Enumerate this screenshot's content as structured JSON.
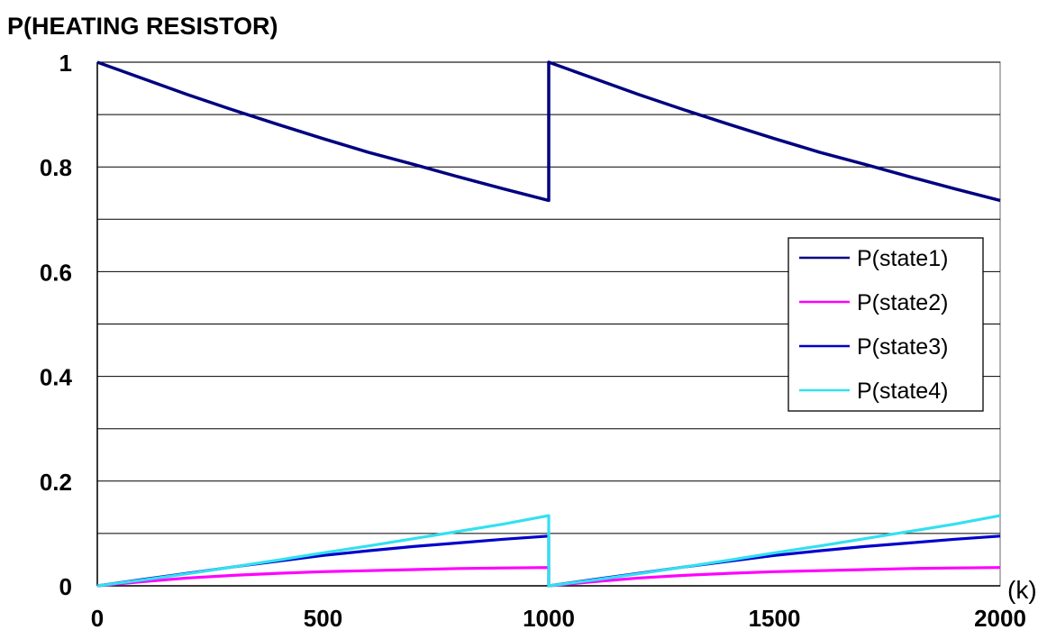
{
  "chart_data": {
    "type": "line",
    "title": "P(HEATING RESISTOR)",
    "xlabel": "(k)",
    "ylabel": "",
    "xlim": [
      0,
      2000
    ],
    "ylim": [
      0,
      1
    ],
    "x_ticks": [
      "0",
      "500",
      "1000",
      "1500",
      "2000"
    ],
    "y_ticks": [
      "0",
      "0.2",
      "0.4",
      "0.6",
      "0.8",
      "1"
    ],
    "y_tick_values": [
      0,
      0.2,
      0.4,
      0.6,
      0.8,
      1
    ],
    "x_tick_values": [
      0,
      500,
      1000,
      1500,
      2000
    ],
    "minor_gridlines_y": [
      0.1,
      0.3,
      0.5,
      0.7,
      0.9
    ],
    "grid": true,
    "legend_position": "right",
    "series": [
      {
        "name": "P(state1)",
        "color": "#000080",
        "x": [
          0,
          100,
          200,
          300,
          400,
          500,
          600,
          700,
          800,
          900,
          1000,
          1000,
          1100,
          1200,
          1300,
          1400,
          1500,
          1600,
          1700,
          1800,
          1900,
          2000
        ],
        "y": [
          1.0,
          0.969,
          0.938,
          0.909,
          0.881,
          0.854,
          0.828,
          0.805,
          0.781,
          0.758,
          0.736,
          1.0,
          0.969,
          0.938,
          0.909,
          0.881,
          0.854,
          0.828,
          0.805,
          0.781,
          0.758,
          0.736
        ]
      },
      {
        "name": "P(state2)",
        "color": "#ff00ff",
        "x": [
          0,
          100,
          200,
          300,
          400,
          500,
          600,
          700,
          800,
          900,
          1000,
          1000,
          1100,
          1200,
          1300,
          1400,
          1500,
          1600,
          1700,
          1800,
          1900,
          2000
        ],
        "y": [
          0.0,
          0.008,
          0.015,
          0.02,
          0.024,
          0.027,
          0.029,
          0.031,
          0.033,
          0.034,
          0.035,
          0.0,
          0.008,
          0.015,
          0.02,
          0.024,
          0.027,
          0.029,
          0.031,
          0.033,
          0.034,
          0.035
        ]
      },
      {
        "name": "P(state3)",
        "color": "#0000cc",
        "x": [
          0,
          100,
          200,
          300,
          400,
          500,
          600,
          700,
          800,
          900,
          1000,
          1000,
          1100,
          1200,
          1300,
          1400,
          1500,
          1600,
          1700,
          1800,
          1900,
          2000
        ],
        "y": [
          0.0,
          0.012,
          0.024,
          0.036,
          0.047,
          0.058,
          0.067,
          0.075,
          0.082,
          0.089,
          0.095,
          0.0,
          0.012,
          0.024,
          0.036,
          0.047,
          0.058,
          0.067,
          0.075,
          0.082,
          0.089,
          0.095
        ]
      },
      {
        "name": "P(state4)",
        "color": "#33e0f0",
        "x": [
          0,
          100,
          200,
          300,
          400,
          500,
          600,
          700,
          800,
          900,
          1000,
          1000,
          1100,
          1200,
          1300,
          1400,
          1500,
          1600,
          1700,
          1800,
          1900,
          2000
        ],
        "y": [
          0.0,
          0.011,
          0.023,
          0.036,
          0.049,
          0.063,
          0.076,
          0.09,
          0.104,
          0.118,
          0.134,
          0.0,
          0.011,
          0.023,
          0.036,
          0.049,
          0.063,
          0.076,
          0.09,
          0.104,
          0.118,
          0.134
        ]
      }
    ]
  }
}
